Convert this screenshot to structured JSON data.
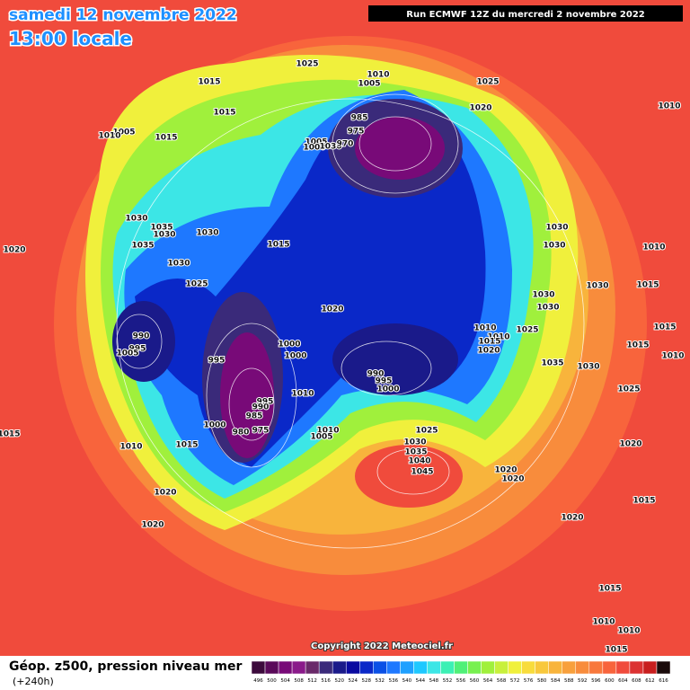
{
  "header": {
    "date": "samedi 12 novembre 2022",
    "time": "13:00 locale",
    "run": "Run ECMWF 12Z du mercredi 2 novembre 2022"
  },
  "copyright": "Copyright 2022 Meteociel.fr",
  "isobar_labels": [
    "1025",
    "1010",
    "1005",
    "1025",
    "1015",
    "1020",
    "1010",
    "1015",
    "985",
    "975",
    "1005",
    "1010",
    "1015",
    "1005",
    "1000",
    "1030",
    "970",
    "1030",
    "1035",
    "1030",
    "1030",
    "1030",
    "1030",
    "1010",
    "1020",
    "1035",
    "1015",
    "1030",
    "1025",
    "1030",
    "1015",
    "1030",
    "1030",
    "1020",
    "1010",
    "1010",
    "1015",
    "1025",
    "1020",
    "990",
    "995",
    "1005",
    "1000",
    "1000",
    "995",
    "1035",
    "1030",
    "1015",
    "1015",
    "1010",
    "990",
    "995",
    "1000",
    "1010",
    "995",
    "990",
    "985",
    "980",
    "975",
    "1000",
    "1010",
    "1005",
    "1025",
    "1030",
    "1035",
    "1040",
    "1045",
    "1015",
    "1010",
    "1015",
    "1020",
    "1025",
    "1020",
    "1020",
    "1020",
    "1015",
    "1020",
    "1020",
    "1015",
    "1010",
    "1010",
    "1015"
  ],
  "legend": {
    "title": "Géop. z500, pression niveau mer",
    "lead": "(+240h)",
    "scale": [
      496,
      500,
      504,
      508,
      512,
      516,
      520,
      524,
      528,
      532,
      536,
      540,
      544,
      548,
      552,
      556,
      560,
      564,
      568,
      572,
      576,
      580,
      584,
      588,
      592,
      596,
      600,
      604,
      608,
      612,
      616
    ],
    "colors": [
      "#3c0a3c",
      "#5a0a5a",
      "#780a78",
      "#8a1a8a",
      "#6a2a6a",
      "#3a2a7a",
      "#1a1a8a",
      "#0a0aa0",
      "#0a28c8",
      "#0a50e6",
      "#1e78ff",
      "#1ea0ff",
      "#1ec8ff",
      "#3ce6e6",
      "#3cf0b4",
      "#50f078",
      "#78f050",
      "#a0f03c",
      "#c8f03c",
      "#f0f03c",
      "#f8dc3c",
      "#f8c83c",
      "#f8b43c",
      "#f8a03c",
      "#f88c3c",
      "#f8783c",
      "#f8643c",
      "#f04b3c",
      "#dc3232",
      "#c81e1e",
      "#1a0a0a"
    ]
  }
}
